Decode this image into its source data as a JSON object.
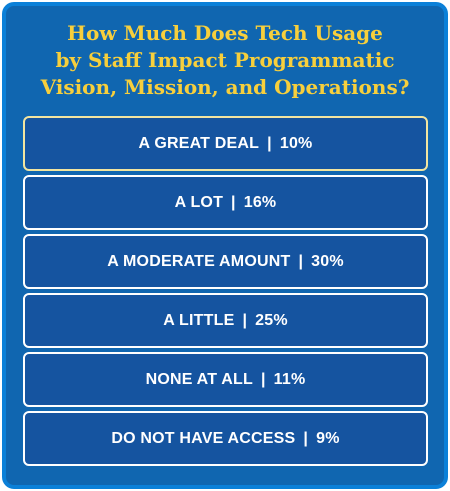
{
  "title_lines": [
    "How Much Does Tech Usage",
    "by Staff Impact Programmatic",
    "Vision, Mission, and Operations?"
  ],
  "chart_data": {
    "type": "table",
    "title": "How Much Does Tech Usage by Staff Impact Programmatic Vision, Mission, and Operations?",
    "categories": [
      "A GREAT DEAL",
      "A LOT",
      "A MODERATE AMOUNT",
      "A LITTLE",
      "NONE AT ALL",
      "DO NOT HAVE ACCESS"
    ],
    "values": [
      10,
      16,
      30,
      25,
      11,
      9
    ],
    "value_labels": [
      "10%",
      "16%",
      "30%",
      "25%",
      "11%",
      "9%"
    ],
    "unit": "%"
  },
  "colors": {
    "background": "#1066b0",
    "frame_border": "#0b80d8",
    "title_text": "#f7cf3c",
    "row_fill": "#1554a0",
    "row_border": "#ffffff",
    "highlight_border": "#f2e5a0",
    "row_text": "#ffffff"
  }
}
